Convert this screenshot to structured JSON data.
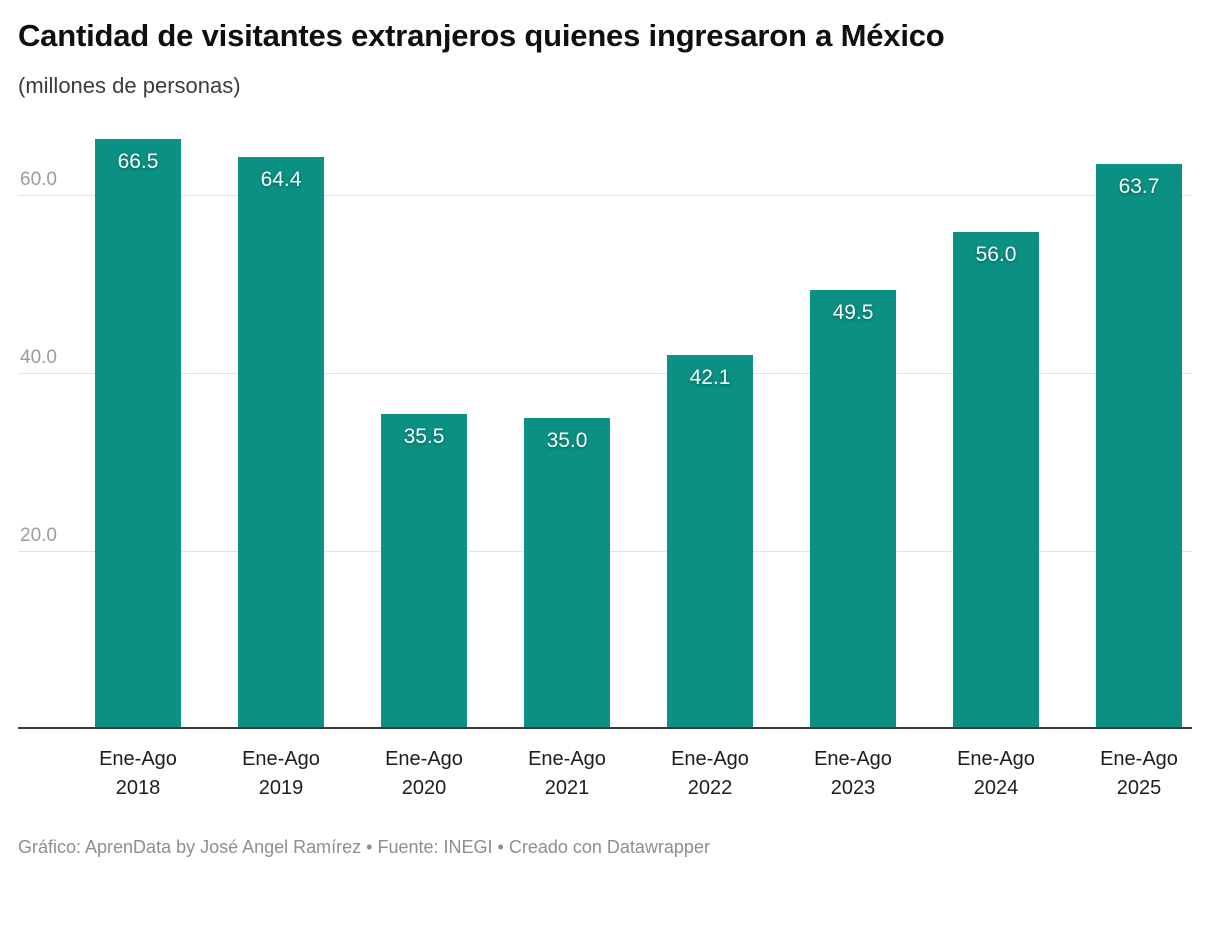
{
  "header": {
    "title": "Cantidad de visitantes extranjeros quienes ingresaron a México",
    "subtitle": "(millones de personas)"
  },
  "footer": {
    "text": "Gráfico: AprenData by José Angel Ramírez • Fuente: INEGI • Creado con Datawrapper"
  },
  "chart_data": {
    "type": "bar",
    "title": "Cantidad de visitantes extranjeros quienes ingresaron a México",
    "subtitle": "(millones de personas)",
    "categories": [
      "Ene-Ago 2018",
      "Ene-Ago 2019",
      "Ene-Ago 2020",
      "Ene-Ago 2021",
      "Ene-Ago 2022",
      "Ene-Ago 2023",
      "Ene-Ago 2024",
      "Ene-Ago 2025"
    ],
    "values": [
      66.5,
      64.4,
      35.5,
      35.0,
      42.1,
      49.5,
      56.0,
      63.7
    ],
    "value_labels": [
      "66.5",
      "64.4",
      "35.5",
      "35.0",
      "42.1",
      "49.5",
      "56.0",
      "63.7"
    ],
    "xlabel": "",
    "ylabel": "",
    "yticks": [
      20.0,
      40.0,
      60.0
    ],
    "ytick_labels": [
      "20.0",
      "40.0",
      "60.0"
    ],
    "ylim": [
      0,
      68
    ],
    "grid": true,
    "legend": "none",
    "bar_color": "#0a9183",
    "value_label_color": "#ffffff",
    "source_text": "Fuente: INEGI",
    "credit_text": "Gráfico: AprenData by José Angel Ramírez",
    "tool_text": "Creado con Datawrapper"
  }
}
